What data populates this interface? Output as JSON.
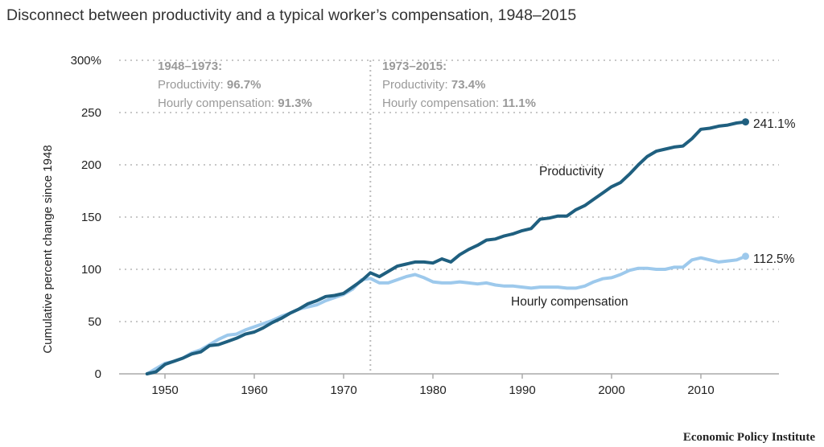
{
  "chart_data": {
    "type": "line",
    "title": "Disconnect between productivity and a typical worker’s compensation, 1948–2015",
    "ylabel": "Cumulative percent change since 1948",
    "xlabel": "",
    "xlim": [
      1944,
      2019
    ],
    "ylim": [
      0,
      300
    ],
    "x_ticks": [
      "1950",
      "1960",
      "1970",
      "1980",
      "1990",
      "2000",
      "2010"
    ],
    "y_ticks": [
      "0",
      "50",
      "100",
      "150",
      "200",
      "250",
      "300%"
    ],
    "grid": "horizontal dotted",
    "x": [
      1948,
      1949,
      1950,
      1951,
      1952,
      1953,
      1954,
      1955,
      1956,
      1957,
      1958,
      1959,
      1960,
      1961,
      1962,
      1963,
      1964,
      1965,
      1966,
      1967,
      1968,
      1969,
      1970,
      1971,
      1972,
      1973,
      1974,
      1975,
      1976,
      1977,
      1978,
      1979,
      1980,
      1981,
      1982,
      1983,
      1984,
      1985,
      1986,
      1987,
      1988,
      1989,
      1990,
      1991,
      1992,
      1993,
      1994,
      1995,
      1996,
      1997,
      1998,
      1999,
      2000,
      2001,
      2002,
      2003,
      2004,
      2005,
      2006,
      2007,
      2008,
      2009,
      2010,
      2011,
      2012,
      2013,
      2014,
      2015
    ],
    "series": [
      {
        "name": "Productivity",
        "color": "#1f5f7f",
        "end_label": "241.1%",
        "values": [
          0,
          2,
          9,
          12,
          15,
          19,
          21,
          27,
          28,
          31,
          34,
          38,
          40,
          44,
          49,
          53,
          58,
          62,
          67,
          70,
          74,
          75,
          77,
          83,
          89,
          96.7,
          93,
          98,
          103,
          105,
          107,
          107,
          106,
          110,
          107,
          114,
          119,
          123,
          128,
          129,
          132,
          134,
          137,
          139,
          148,
          149,
          151,
          151,
          157,
          161,
          167,
          173,
          179,
          183,
          191,
          200,
          208,
          213,
          215,
          217,
          218,
          225,
          234,
          235,
          237,
          238,
          240,
          241.1
        ]
      },
      {
        "name": "Hourly compensation",
        "color": "#9dc9ec",
        "end_label": "112.5%",
        "values": [
          0,
          5,
          10,
          12,
          15,
          20,
          23,
          28,
          33,
          37,
          38,
          42,
          45,
          48,
          51,
          55,
          58,
          62,
          64,
          66,
          70,
          73,
          76,
          81,
          90,
          91.3,
          87,
          87,
          90,
          93,
          95,
          92,
          88,
          87,
          87,
          88,
          87,
          86,
          87,
          85,
          84,
          84,
          83,
          82,
          83,
          83,
          83,
          82,
          82,
          84,
          88,
          91,
          92,
          95,
          99,
          101,
          101,
          100,
          100,
          102,
          102,
          109,
          111,
          109,
          107,
          108,
          109,
          112.5
        ]
      }
    ],
    "divider_year": 1973,
    "annotations": [
      {
        "heading": "1948–1973:",
        "line1_label": "Productivity: ",
        "line1_value": "96.7%",
        "line2_label": "Hourly compensation: ",
        "line2_value": "91.3%"
      },
      {
        "heading": "1973–2015:",
        "line1_label": "Productivity: ",
        "line1_value": "73.4%",
        "line2_label": "Hourly compensation: ",
        "line2_value": "11.1%"
      }
    ]
  },
  "footer": "Economic Policy Institute"
}
